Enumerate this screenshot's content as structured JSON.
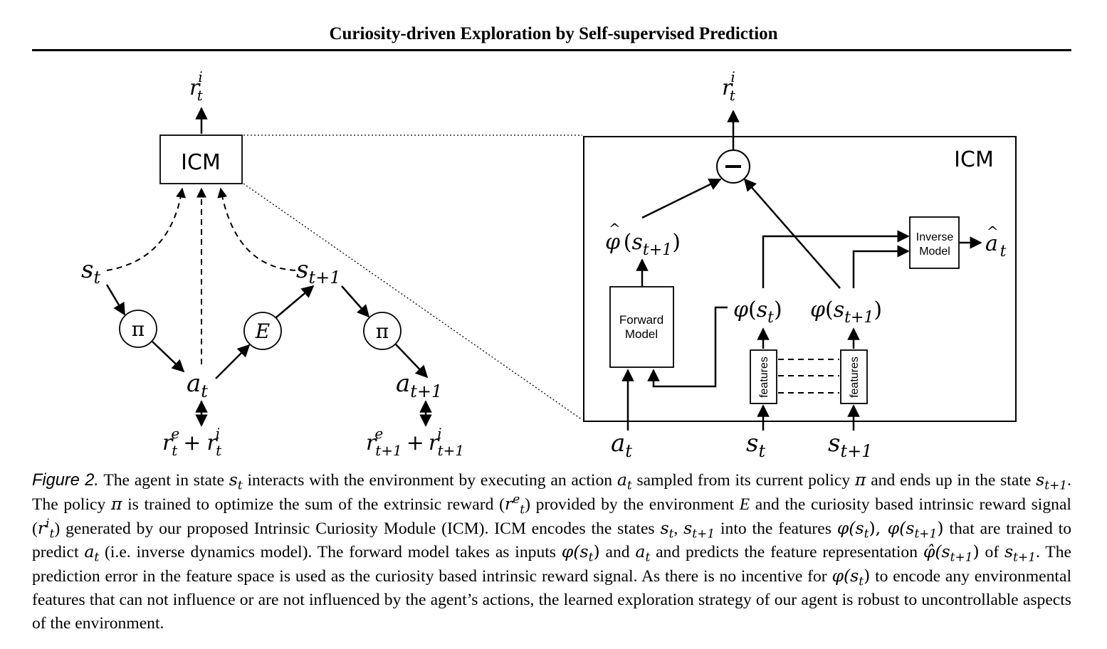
{
  "header": {
    "title": "Curiosity-driven Exploration by Self-supervised Prediction"
  },
  "left_diagram": {
    "icm_label": "ICM",
    "top_reward": {
      "base": "r",
      "sub": "t",
      "sup": "i"
    },
    "state_t": {
      "base": "s",
      "sub": "t"
    },
    "state_t1": {
      "base": "s",
      "sub": "t+1"
    },
    "policy_symbol_1": "π",
    "policy_symbol_2": "π",
    "env_symbol": "E",
    "action_t": {
      "base": "a",
      "sub": "t"
    },
    "action_t1": {
      "base": "a",
      "sub": "t+1"
    },
    "reward_t": {
      "r1_base": "r",
      "r1_sub": "t",
      "r1_sup": "e",
      "plus": "+",
      "r2_base": "r",
      "r2_sub": "t",
      "r2_sup": "i"
    },
    "reward_t1": {
      "r1_base": "r",
      "r1_sub": "t+1",
      "r1_sup": "e",
      "plus": "+",
      "r2_base": "r",
      "r2_sub": "t+1",
      "r2_sup": "i"
    }
  },
  "right_diagram": {
    "icm_label": "ICM",
    "top_reward": {
      "base": "r",
      "sub": "t",
      "sup": "i"
    },
    "minus_symbol": "−",
    "phi_hat": {
      "hat": "^",
      "phi": "φ",
      "open": "(",
      "base": "s",
      "sub": "t+1",
      "close": ")"
    },
    "phi_st": {
      "phi": "φ",
      "open": "(",
      "base": "s",
      "sub": "t",
      "close": ")"
    },
    "phi_st1": {
      "phi": "φ",
      "open": "(",
      "base": "s",
      "sub": "t+1",
      "close": ")"
    },
    "forward_model": [
      "Forward",
      "Model"
    ],
    "inverse_model": [
      "Inverse",
      "Model"
    ],
    "features_label_1": "features",
    "features_label_2": "features",
    "a_hat": {
      "hat": "^",
      "base": "a",
      "sub": "t"
    },
    "input_a": {
      "base": "a",
      "sub": "t"
    },
    "input_s": {
      "base": "s",
      "sub": "t"
    },
    "input_s1": {
      "base": "s",
      "sub": "t+1"
    }
  },
  "caption": {
    "lead": "Figure 2.",
    "t1": " The agent in state ",
    "s_t": "s",
    "s_t_sub": "t",
    "t2": " interacts with the environment by executing an action ",
    "a_t": "a",
    "a_t_sub": "t",
    "t3": " sampled from its current policy ",
    "pi1": "π",
    "t4": " and ends up in the state ",
    "s_t1": "s",
    "s_t1_sub": "t+1",
    "t5": ". The policy ",
    "pi2": "π",
    "t6": " is trained to optimize the sum of the extrinsic reward (",
    "re": "r",
    "re_sub": "t",
    "re_sup": "e",
    "t7": ") provided by the environment ",
    "E": "E",
    "t8": " and the curiosity based intrinsic reward signal (",
    "ri": "r",
    "ri_sub": "t",
    "ri_sup": "i",
    "t9": ") generated by our proposed Intrinsic Curiosity Module (ICM). ICM encodes the states ",
    "st2": "s",
    "st2_sub": "t",
    "comma1": ", ",
    "st3": "s",
    "st3_sub": "t+1",
    "t10": " into the features ",
    "phi1": "φ(",
    "phi1_s": "s",
    "phi1_sub": "t",
    "phi1_close": "), ",
    "phi2": "φ(",
    "phi2_s": "s",
    "phi2_sub": "t+1",
    "phi2_close": ")",
    "t11": " that are trained to predict ",
    "a2": "a",
    "a2_sub": "t",
    "t12": " (i.e. inverse dynamics model). The forward model takes as inputs ",
    "phi3": "φ(",
    "phi3_s": "s",
    "phi3_sub": "t",
    "phi3_close": ")",
    "t13": " and ",
    "a3": "a",
    "a3_sub": "t",
    "t14": " and predicts the feature representation ",
    "phihat": "φ̂(",
    "phihat_s": "s",
    "phihat_sub": "t+1",
    "phihat_close": ")",
    "t15": " of ",
    "st4": "s",
    "st4_sub": "t+1",
    "t16": ". The prediction error in the feature space is used as the curiosity based intrinsic reward signal. As there is no incentive for ",
    "phi4": "φ(",
    "phi4_s": "s",
    "phi4_sub": "t",
    "phi4_close": ")",
    "t17": " to encode any environmental features that can not influence or are not influenced by the agent’s actions, the learned exploration strategy of our agent is robust to uncontrollable aspects of the environment."
  }
}
